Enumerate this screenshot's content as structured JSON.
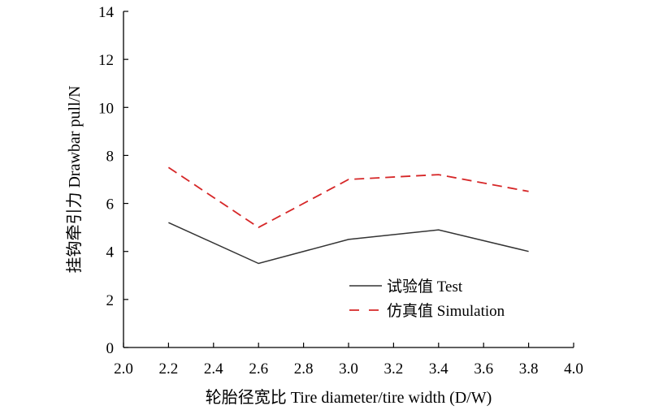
{
  "chart_data": {
    "type": "line",
    "xlabel": "轮胎径宽比 Tire diameter/tire width (D/W)",
    "ylabel": "挂钩牵引力 Drawbar pull/N",
    "xlim": [
      2.0,
      4.0
    ],
    "ylim": [
      0,
      14
    ],
    "x_ticks": [
      "2.0",
      "2.2",
      "2.4",
      "2.6",
      "2.8",
      "3.0",
      "3.2",
      "3.4",
      "3.6",
      "3.8",
      "4.0"
    ],
    "y_ticks": [
      "0",
      "2",
      "4",
      "6",
      "8",
      "10",
      "12",
      "14"
    ],
    "grid": false,
    "legend_position": "bottom-right",
    "x": [
      2.2,
      2.6,
      3.0,
      3.4,
      3.8
    ],
    "series": [
      {
        "name": "试验值 Test",
        "values": [
          5.2,
          3.5,
          4.5,
          4.9,
          4.0
        ],
        "color": "#333333",
        "style": "solid"
      },
      {
        "name": "仿真值 Simulation",
        "values": [
          7.5,
          5.0,
          7.0,
          7.2,
          6.5
        ],
        "color": "#d62728",
        "style": "dashed"
      }
    ]
  }
}
